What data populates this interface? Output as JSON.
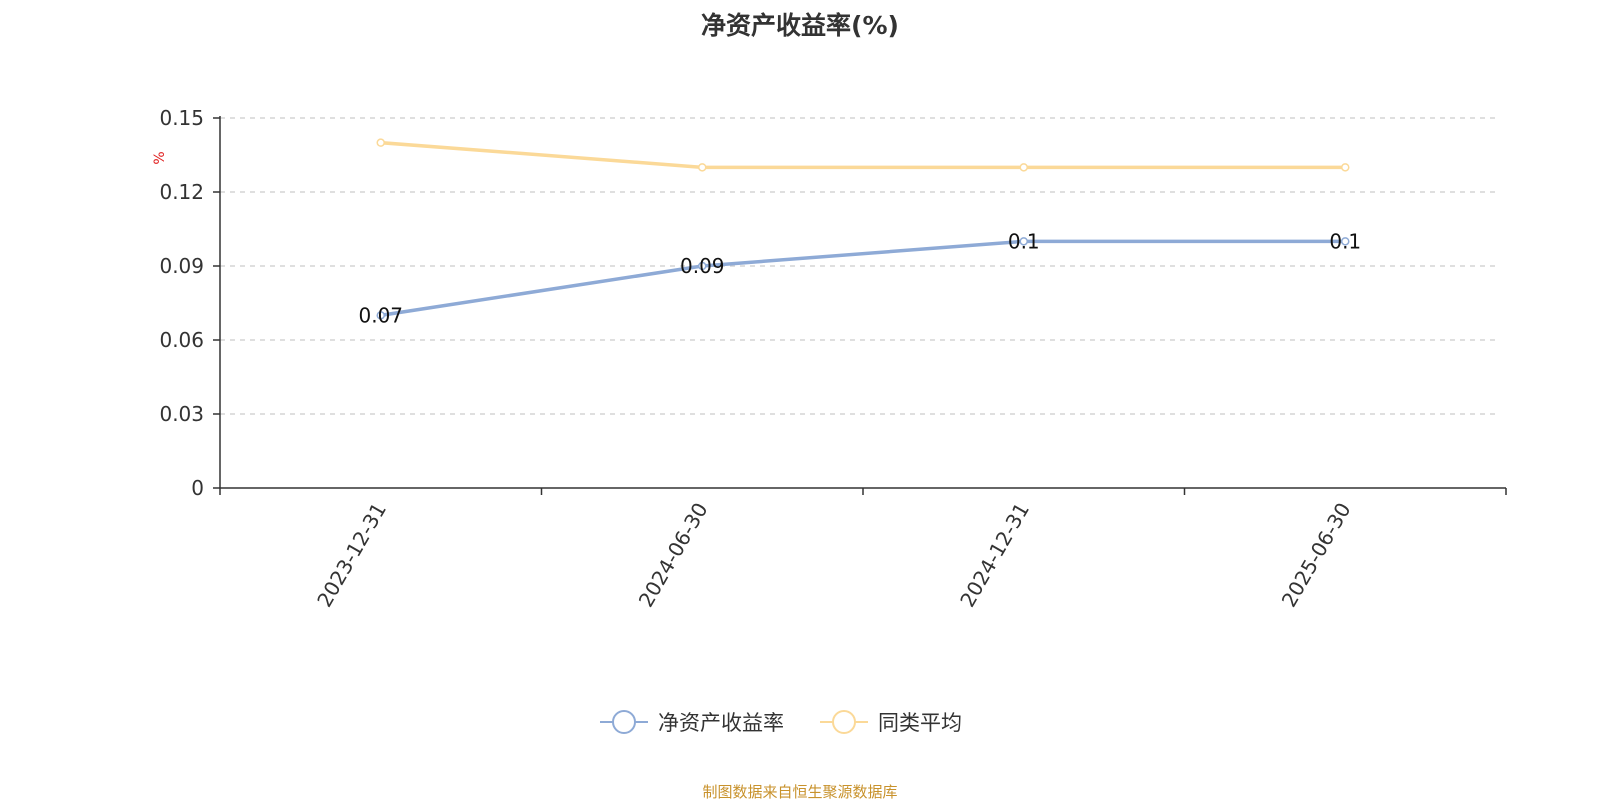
{
  "title": "净资产收益率(%)",
  "source": "制图数据来自恒生聚源数据库",
  "colors": {
    "series1": "#8eaad6",
    "series2": "#fbd998",
    "unit": "#e02020"
  },
  "chart_data": {
    "type": "line",
    "title": "净资产收益率(%)",
    "ylabel": "%",
    "ylim": [
      0,
      0.15
    ],
    "yticks": [
      "0",
      "0.03",
      "0.06",
      "0.09",
      "0.12",
      "0.15"
    ],
    "categories": [
      "2023-12-31",
      "2024-06-30",
      "2024-12-31",
      "2025-06-30"
    ],
    "grid": true,
    "legend_position": "bottom",
    "series": [
      {
        "name": "净资产收益率",
        "values": [
          0.07,
          0.09,
          0.1,
          0.1
        ],
        "data_labels": [
          "0.07",
          "0.09",
          "0.1",
          "0.1"
        ]
      },
      {
        "name": "同类平均",
        "values": [
          0.14,
          0.13,
          0.13,
          0.13
        ]
      }
    ]
  }
}
